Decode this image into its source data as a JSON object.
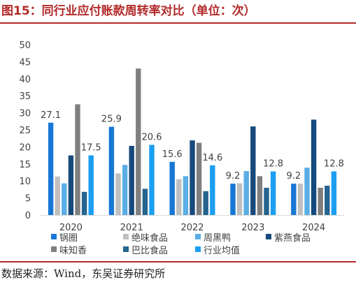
{
  "title": "图15：同行业应付账款周转率对比（单位：次）",
  "source": "数据来源：Wind，东吴证券研究所",
  "chart_data": {
    "type": "bar",
    "title": "图15：同行业应付账款周转率对比（单位：次）",
    "xlabel": "",
    "ylabel": "",
    "categories": [
      "2020",
      "2021",
      "2022",
      "2023",
      "2024"
    ],
    "ylim": [
      0,
      50
    ],
    "yticks": [
      0,
      5,
      10,
      15,
      20,
      25,
      30,
      35,
      40,
      45,
      50
    ],
    "grid": false,
    "legend_position": "bottom",
    "series": [
      {
        "name": "锅圈",
        "color": "#1777d6",
        "values": [
          27.1,
          25.9,
          15.6,
          9.2,
          9.2
        ],
        "labels": [
          "27.1",
          "25.9",
          "15.6",
          "9.2",
          "9.2"
        ]
      },
      {
        "name": "绝味食品",
        "color": "#bfbfbf",
        "values": [
          11.3,
          12.2,
          10.5,
          9.3,
          9.2
        ]
      },
      {
        "name": "周黑鸭",
        "color": "#5aaee5",
        "values": [
          9.3,
          14.7,
          11.4,
          12.9,
          13.9
        ]
      },
      {
        "name": "紫燕食品",
        "color": "#174a7c",
        "values": [
          17.5,
          20.3,
          21.9,
          26.0,
          28.0
        ]
      },
      {
        "name": "味知香",
        "color": "#7f7f7f",
        "values": [
          32.5,
          43.0,
          21.2,
          11.4,
          8.0
        ]
      },
      {
        "name": "巴比食品",
        "color": "#24648e",
        "values": [
          6.8,
          7.7,
          7.0,
          8.0,
          8.6
        ]
      },
      {
        "name": "行业均值",
        "color": "#1a9ff2",
        "values": [
          17.5,
          20.6,
          14.6,
          12.8,
          12.8
        ],
        "labels": [
          "17.5",
          "20.6",
          "14.6",
          "12.8",
          "12.8"
        ]
      }
    ]
  }
}
